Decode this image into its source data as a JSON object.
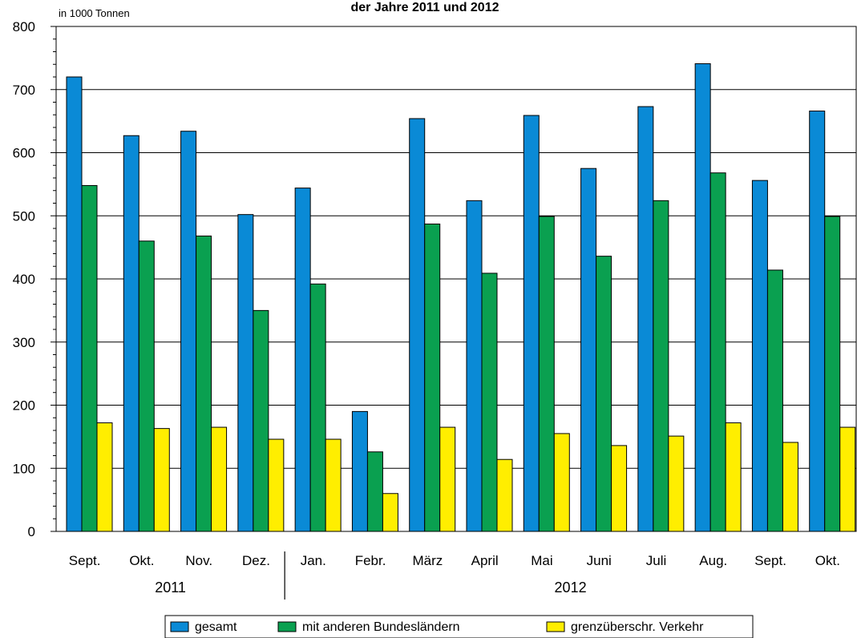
{
  "chart_data": {
    "type": "bar",
    "title": "der Jahre 2011 und 2012",
    "unit_label": "in 1000 Tonnen",
    "ylim": [
      0,
      800
    ],
    "yticks": [
      0,
      100,
      200,
      300,
      400,
      500,
      600,
      700,
      800
    ],
    "grid": true,
    "categories": [
      "Sept.",
      "Okt.",
      "Nov.",
      "Dez.",
      "Jan.",
      "Febr.",
      "März",
      "April",
      "Mai",
      "Juni",
      "Juli",
      "Aug.",
      "Sept.",
      "Okt."
    ],
    "year_groups": [
      {
        "label": "2011",
        "start": 0,
        "end": 3
      },
      {
        "label": "2012",
        "start": 4,
        "end": 13
      }
    ],
    "series": [
      {
        "name": "gesamt",
        "color": "#0a8ad6",
        "values": [
          720,
          627,
          634,
          502,
          544,
          190,
          654,
          524,
          659,
          575,
          673,
          741,
          556,
          666
        ]
      },
      {
        "name": "mit anderen Bundesländern",
        "color": "#0aa050",
        "values": [
          548,
          460,
          468,
          350,
          392,
          126,
          487,
          409,
          499,
          436,
          524,
          568,
          414,
          499
        ]
      },
      {
        "name": "grenzüberschr. Verkehr",
        "color": "#ffee00",
        "values": [
          172,
          163,
          165,
          146,
          146,
          60,
          165,
          114,
          155,
          136,
          151,
          172,
          141,
          165
        ]
      }
    ],
    "legend_position": "bottom"
  }
}
